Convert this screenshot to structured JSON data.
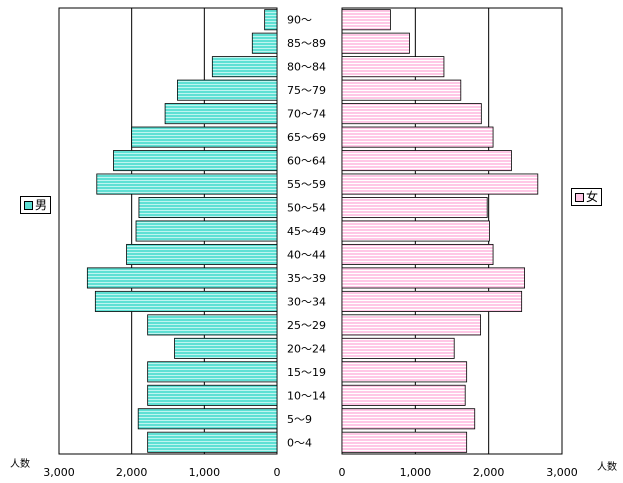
{
  "chart_data": {
    "type": "bar",
    "orientation": "horizontal-pyramid",
    "categories": [
      "0～4",
      "5～9",
      "10～14",
      "15～19",
      "20～24",
      "25～29",
      "30～34",
      "35～39",
      "40～44",
      "45～49",
      "50～54",
      "55～59",
      "60～64",
      "65～69",
      "70～74",
      "75～79",
      "80～84",
      "85～89",
      "90～"
    ],
    "series": [
      {
        "name": "男",
        "side": "left",
        "values": [
          1780,
          1910,
          1780,
          1780,
          1410,
          1780,
          2500,
          2610,
          2070,
          1940,
          1900,
          2480,
          2250,
          2000,
          1540,
          1370,
          890,
          340,
          170
        ]
      },
      {
        "name": "女",
        "side": "right",
        "values": [
          1700,
          1810,
          1680,
          1700,
          1530,
          1890,
          2450,
          2490,
          2060,
          2010,
          1980,
          2670,
          2310,
          2060,
          1900,
          1620,
          1390,
          920,
          660
        ]
      }
    ],
    "xlim": [
      0,
      3000
    ],
    "x_ticks": [
      "3,000",
      "2,000",
      "1,000",
      "0",
      "0",
      "1,000",
      "2,000",
      "3,000"
    ],
    "xlabel_left": "人数",
    "xlabel_right": "人数",
    "grid": true,
    "legend": [
      "男",
      "女"
    ],
    "colors": {
      "male": "#5fe0d4",
      "female": "#ffc8e6",
      "male_edge": "#000000",
      "female_edge": "#000000",
      "grid": "#000000"
    }
  }
}
